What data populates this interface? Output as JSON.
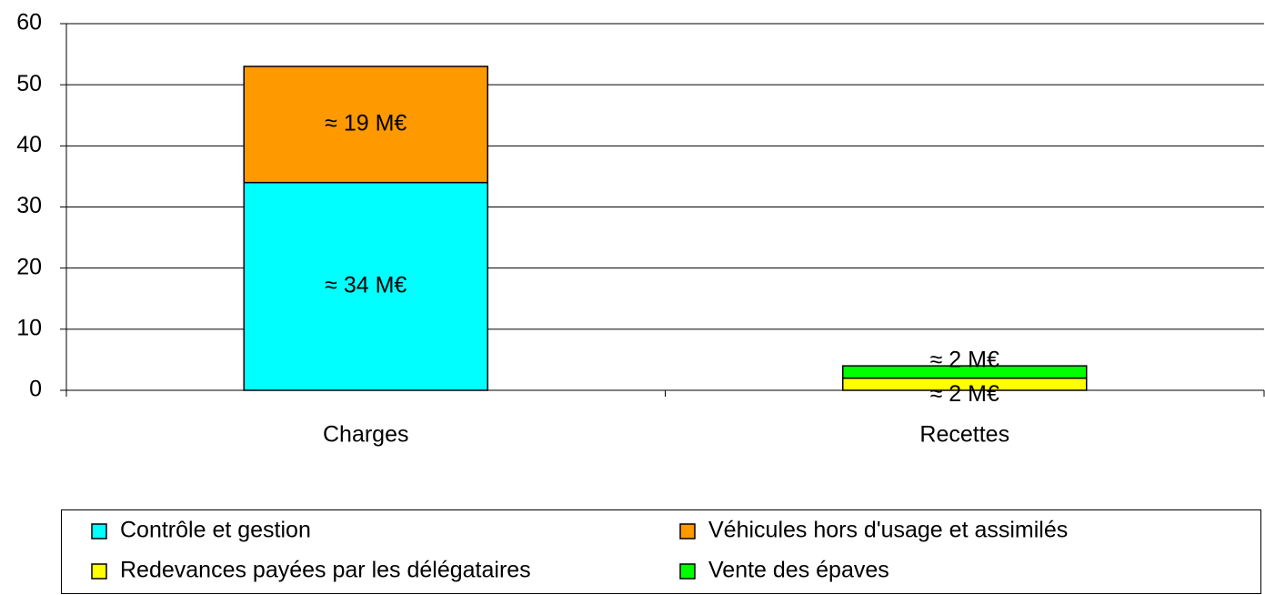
{
  "chart_data": {
    "type": "stacked_bar",
    "categories": [
      "Charges",
      "Recettes"
    ],
    "series": [
      {
        "name": "Contrôle et gestion",
        "color": "#00ffff",
        "values": [
          34,
          null
        ],
        "value_labels": [
          "≈ 34 M€",
          null
        ]
      },
      {
        "name": "Véhicules hors d'usage et assimilés",
        "color": "#ff9900",
        "values": [
          19,
          null
        ],
        "value_labels": [
          "≈ 19 M€",
          null
        ]
      },
      {
        "name": "Redevances payées par les délégataires",
        "color": "#ffff00",
        "values": [
          null,
          2
        ],
        "value_labels": [
          null,
          "≈ 2 M€"
        ]
      },
      {
        "name": "Vente des épaves",
        "color": "#00ff00",
        "values": [
          null,
          2
        ],
        "value_labels": [
          null,
          "≈ 2 M€"
        ]
      }
    ],
    "ylim": [
      0,
      60
    ],
    "yticks": [
      0,
      10,
      20,
      30,
      40,
      50,
      60
    ],
    "grid": true,
    "legend": "bottom"
  }
}
